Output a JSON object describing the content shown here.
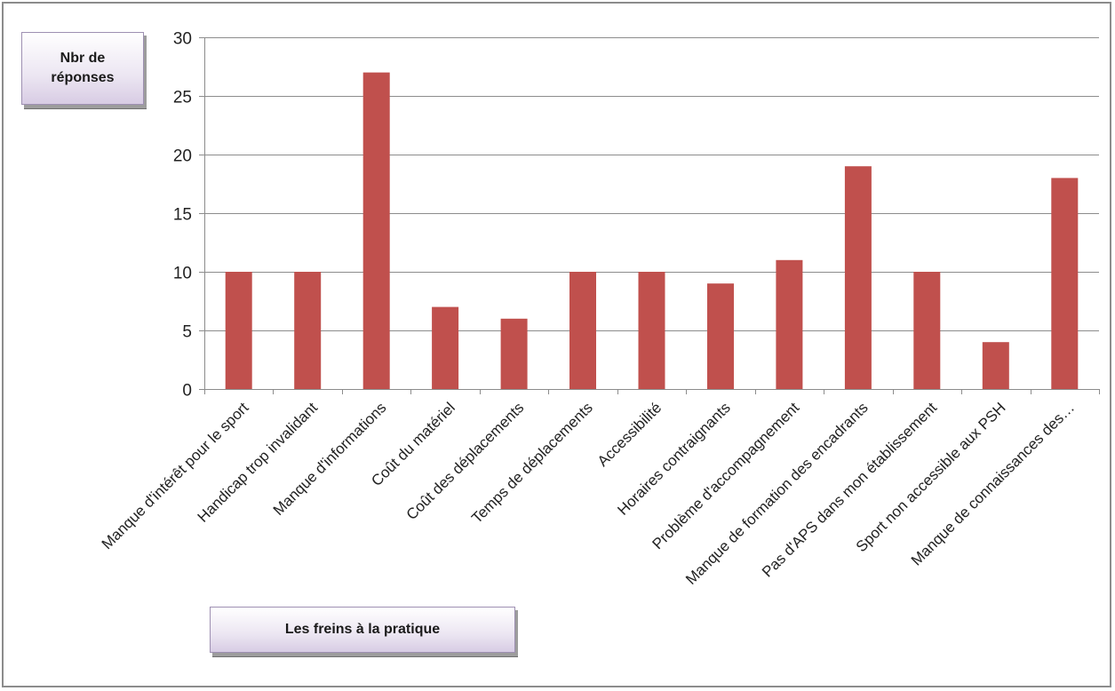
{
  "chart_data": {
    "type": "bar",
    "categories": [
      "Manque d'intérêt pour le sport",
      "Handicap trop invalidant",
      "Manque d'informations",
      "Coût du matériel",
      "Coût des déplacements",
      "Temps de déplacements",
      "Accessibilité",
      "Horaires contraignants",
      "Problème d'accompagnement",
      "Manque de formation des encadrants",
      "Pas d'APS dans mon établissement",
      "Sport non accessible aux PSH",
      "Manque de connaissances des…"
    ],
    "values": [
      10,
      10,
      27,
      7,
      6,
      10,
      10,
      9,
      11,
      19,
      10,
      4,
      18
    ],
    "ylabel": "Nbr de réponses",
    "xlabel": "Les freins à la pratique",
    "ylim": [
      0,
      30
    ],
    "yticks": [
      0,
      5,
      10,
      15,
      20,
      25,
      30
    ],
    "grid": true,
    "legend": "none",
    "bar_color": "#c0504d",
    "grid_color": "#8c8c8c"
  }
}
